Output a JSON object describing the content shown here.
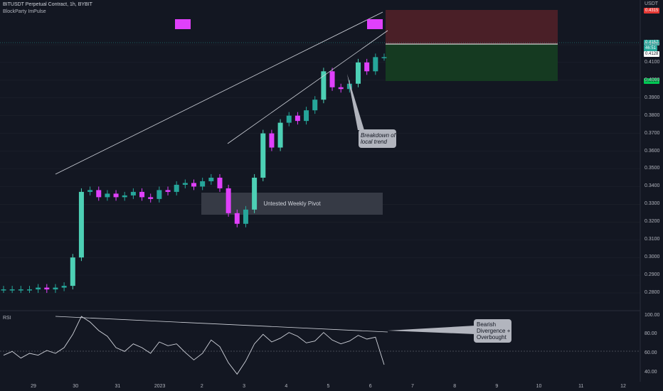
{
  "header": {
    "symbol_line": "BITUSDT Perpetual Contract, 1h, BYBIT",
    "indicator": "BlockParty ImPulse"
  },
  "currency": "USDT",
  "rsi_label": "RSI",
  "colors": {
    "background": "#131722",
    "bull": "#26a69a",
    "bull_strong": "#4dd0b5",
    "bear": "#e040fb",
    "stop_zone": "#4a1f27",
    "target_zone": "#153a21",
    "pivot_box": "#363a45",
    "callout": "#b2b5be",
    "grid": "#1e222d"
  },
  "annotations": {
    "pivot": "Untested Weekly Pivot",
    "breakdown": "Breakdown of\nlocal trend",
    "divergence": "Bearish\nDivergence +\nOverbought"
  },
  "price_tags": {
    "stop": "0.4315",
    "current": "0.4157",
    "countdown": "46:51",
    "entry": "0.4128",
    "target": "0.3919"
  },
  "chart_data": [
    {
      "type": "line",
      "title": "BITUSDT Perpetual Contract, 1h, BYBIT",
      "xlabel": "",
      "ylabel": "USDT",
      "x_ticks": [
        "29",
        "30",
        "31",
        "2023",
        "2",
        "3",
        "4",
        "5",
        "6",
        "7",
        "8",
        "9",
        "10",
        "11",
        "12"
      ],
      "y_ticks": [
        0.28,
        0.29,
        0.3,
        0.31,
        0.32,
        0.33,
        0.34,
        0.35,
        0.36,
        0.37,
        0.38,
        0.39,
        0.4,
        0.41,
        0.42
      ],
      "ylim": [
        0.27,
        0.438
      ],
      "x": [
        0,
        0.25,
        0.5,
        0.75,
        1.0,
        1.25,
        1.5,
        1.75,
        2.0,
        2.25,
        2.5,
        2.75,
        3.0,
        3.25,
        3.5,
        3.75,
        4.0,
        4.25,
        4.5,
        4.75,
        5.0,
        5.25,
        5.5,
        5.75,
        6.0,
        6.25,
        6.5,
        6.75,
        7.0,
        7.25,
        7.5,
        7.75,
        8.0,
        8.25,
        8.5,
        8.75,
        9.0,
        9.25,
        9.5,
        9.75,
        10.0,
        10.25,
        10.5,
        10.75,
        11.0
      ],
      "series": [
        {
          "values": [
            0.282,
            0.282,
            0.282,
            0.282,
            0.283,
            0.282,
            0.283,
            0.284,
            0.3,
            0.337,
            0.338,
            0.334,
            0.336,
            0.334,
            0.335,
            0.337,
            0.334,
            0.333,
            0.338,
            0.337,
            0.341,
            0.342,
            0.34,
            0.343,
            0.345,
            0.339,
            0.325,
            0.319,
            0.327,
            0.345,
            0.37,
            0.362,
            0.376,
            0.38,
            0.377,
            0.383,
            0.389,
            0.405,
            0.396,
            0.395,
            0.398,
            0.41,
            0.405,
            0.413,
            0.413
          ]
        }
      ],
      "grid": true,
      "legend": "none"
    },
    {
      "type": "line",
      "title": "",
      "xlabel": "",
      "ylabel": "",
      "y_ticks": [
        40.0,
        60.0,
        80.0,
        100.0
      ],
      "ylim": [
        30,
        102
      ],
      "x": [
        0,
        0.25,
        0.5,
        0.75,
        1.0,
        1.25,
        1.5,
        1.75,
        2.0,
        2.25,
        2.5,
        2.75,
        3.0,
        3.25,
        3.5,
        3.75,
        4.0,
        4.25,
        4.5,
        4.75,
        5.0,
        5.25,
        5.5,
        5.75,
        6.0,
        6.25,
        6.5,
        6.75,
        7.0,
        7.25,
        7.5,
        7.75,
        8.0,
        8.25,
        8.5,
        8.75,
        9.0,
        9.25,
        9.5,
        9.75,
        10.0,
        10.25,
        10.5,
        10.75,
        11.0
      ],
      "series": [
        {
          "name": "RSI",
          "values": [
            58,
            62,
            55,
            60,
            58,
            63,
            60,
            66,
            80,
            99,
            93,
            84,
            78,
            66,
            62,
            70,
            66,
            60,
            72,
            68,
            70,
            61,
            53,
            60,
            74,
            67,
            50,
            38,
            52,
            70,
            80,
            72,
            76,
            82,
            78,
            71,
            73,
            82,
            74,
            70,
            73,
            79,
            75,
            77,
            48
          ]
        }
      ],
      "reference_line": 50,
      "grid": false,
      "legend": "none"
    }
  ]
}
